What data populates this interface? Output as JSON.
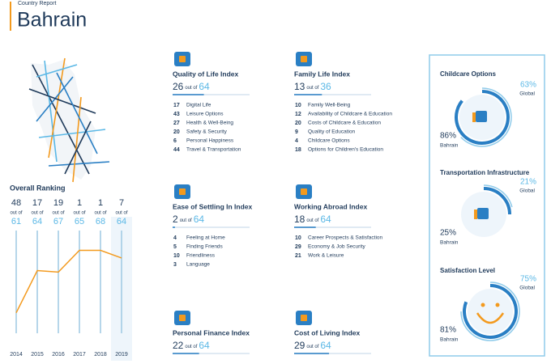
{
  "header": {
    "subtitle": "Country Report",
    "title": "Bahrain"
  },
  "overall_ranking": {
    "title": "Overall Ranking",
    "out_of_label": "out of",
    "years": [
      2014,
      2015,
      2016,
      2017,
      2018,
      2019
    ],
    "ranks": [
      48,
      17,
      19,
      1,
      1,
      7
    ],
    "out_of": [
      61,
      64,
      67,
      65,
      68,
      64
    ]
  },
  "indices": [
    {
      "title": "Quality of Life Index",
      "rank": 26,
      "out_of_label": "out of",
      "out_of": 64,
      "items": [
        {
          "rank": 17,
          "label": "Digital Life"
        },
        {
          "rank": 43,
          "label": "Leisure Options"
        },
        {
          "rank": 27,
          "label": "Health & Well-Being"
        },
        {
          "rank": 20,
          "label": "Safety & Security"
        },
        {
          "rank": 6,
          "label": "Personal Happiness"
        },
        {
          "rank": 44,
          "label": "Travel & Transportation"
        }
      ]
    },
    {
      "title": "Family Life Index",
      "rank": 13,
      "out_of_label": "out of",
      "out_of": 36,
      "items": [
        {
          "rank": 10,
          "label": "Family Well-Being"
        },
        {
          "rank": 12,
          "label": "Availability of Childcare & Education"
        },
        {
          "rank": 20,
          "label": "Costs of Childcare & Education"
        },
        {
          "rank": 9,
          "label": "Quality of Education"
        },
        {
          "rank": 4,
          "label": "Childcare Options"
        },
        {
          "rank": 18,
          "label": "Options for Children's Education"
        }
      ]
    },
    {
      "title": "Ease of Settling In Index",
      "rank": 2,
      "out_of_label": "out of",
      "out_of": 64,
      "items": [
        {
          "rank": 4,
          "label": "Feeling at Home"
        },
        {
          "rank": 5,
          "label": "Finding Friends"
        },
        {
          "rank": 10,
          "label": "Friendliness"
        },
        {
          "rank": 3,
          "label": "Language"
        }
      ]
    },
    {
      "title": "Working Abroad Index",
      "rank": 18,
      "out_of_label": "out of",
      "out_of": 64,
      "items": [
        {
          "rank": 10,
          "label": "Career Prospects & Satisfaction"
        },
        {
          "rank": 29,
          "label": "Economy & Job Security"
        },
        {
          "rank": 21,
          "label": "Work & Leisure"
        }
      ]
    },
    {
      "title": "Personal Finance Index",
      "rank": 22,
      "out_of_label": "out of",
      "out_of": 64,
      "items": []
    },
    {
      "title": "Cost of Living Index",
      "rank": 29,
      "out_of_label": "out of",
      "out_of": 64,
      "items": []
    }
  ],
  "right_panel": [
    {
      "title": "Childcare Options",
      "global": 63,
      "global_label": "63%",
      "global_caption": "Global",
      "local": 86,
      "local_label": "86%",
      "local_caption": "Bahrain"
    },
    {
      "title": "Transportation Infrastructure",
      "global": 21,
      "global_label": "21%",
      "global_caption": "Global",
      "local": 25,
      "local_label": "25%",
      "local_caption": "Bahrain"
    },
    {
      "title": "Satisfaction Level",
      "global": 75,
      "global_label": "75%",
      "global_caption": "Global",
      "local": 81,
      "local_label": "81%",
      "local_caption": "Bahrain"
    }
  ]
}
